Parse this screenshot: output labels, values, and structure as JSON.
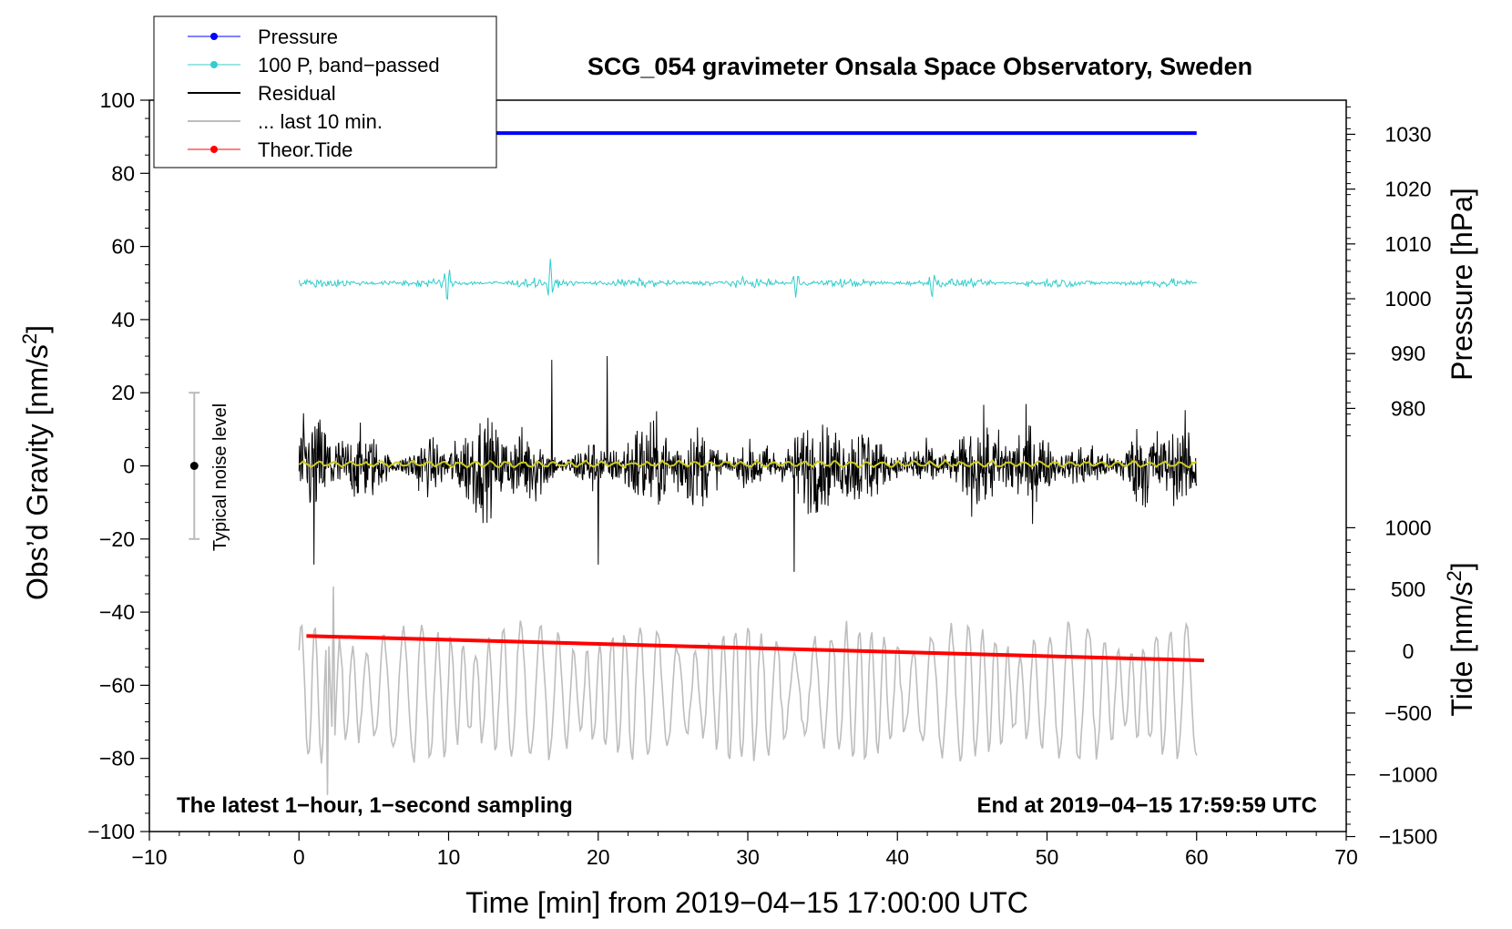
{
  "chart_data": {
    "type": "line",
    "title": "SCG_054 gravimeter Onsala Space Observatory, Sweden",
    "xlabel": "Time [min] from 2019−04−15 17:00:00 UTC",
    "ylabel_left_main": "Obs’d Gravity [nm/s",
    "ylabel_left_sup": "2",
    "ylabel_left_end": "]",
    "ylabel_right_top": "Pressure [hPa]",
    "ylabel_right_bottom_main": "Tide [nm/s",
    "ylabel_right_bottom_sup": "2",
    "ylabel_right_bottom_end": "]",
    "xlim": [
      -10,
      70
    ],
    "ylim": [
      -100,
      100
    ],
    "x_ticks": [
      -10,
      0,
      10,
      20,
      30,
      40,
      50,
      60,
      70
    ],
    "x_tick_labels": [
      "−10",
      "0",
      "10",
      "20",
      "30",
      "40",
      "50",
      "60",
      "70"
    ],
    "y_ticks": [
      100,
      80,
      60,
      40,
      20,
      0,
      -20,
      -40,
      -60,
      -80,
      -100
    ],
    "y_tick_labels": [
      "100",
      "80",
      "60",
      "40",
      "20",
      "0",
      "−20",
      "−40",
      "−60",
      "−80",
      "−100"
    ],
    "pressure_axis": {
      "ticks": [
        1030,
        1020,
        1010,
        1000,
        990,
        980
      ],
      "tick_labels": [
        "1030",
        "1020",
        "1010",
        "1000",
        "990",
        "980"
      ],
      "hpa_per_gravity_unit": 0.667,
      "gravity_at_1000": 45.7
    },
    "tide_axis": {
      "ticks": [
        1000,
        500,
        0,
        -500,
        -1000,
        -1500
      ],
      "tick_labels": [
        "1000",
        "500",
        "0",
        "−500",
        "−1000",
        "−1500"
      ],
      "tide_per_gravity_unit": 29.6,
      "gravity_at_0": -50.7
    },
    "legend": {
      "position": "top-left",
      "entries": [
        {
          "label": "Pressure",
          "color": "#0000ff",
          "marker": true
        },
        {
          "label": "100 P, band−passed",
          "color": "#33cccc",
          "marker": true
        },
        {
          "label": "Residual",
          "color": "#000000",
          "marker": false
        },
        {
          "label": "... last 10 min.",
          "color": "#bdbdbd",
          "marker": false
        },
        {
          "label": "Theor.Tide",
          "color": "#ff0000",
          "marker": true
        }
      ]
    },
    "series": [
      {
        "name": "Pressure",
        "color": "#0000ff",
        "x_range": [
          0,
          60
        ],
        "level": 91,
        "unit": "gravity-axis units"
      },
      {
        "name": "100 P, band−passed",
        "color": "#33cccc",
        "x_range": [
          0,
          60
        ],
        "baseline": 50,
        "noise_amplitude": 1.2,
        "spikes": [
          {
            "x": 9.9,
            "amp": -6
          },
          {
            "x": 16.8,
            "amp": 6
          },
          {
            "x": 33.2,
            "amp": -4
          },
          {
            "x": 42.3,
            "amp": -4
          }
        ]
      },
      {
        "name": "Residual",
        "color": "#000000",
        "x_range": [
          0,
          60
        ],
        "baseline": 0,
        "typical_amplitude": 12,
        "extremes": [
          {
            "x": 20.6,
            "y": 31
          },
          {
            "x": 16.9,
            "y": 29
          },
          {
            "x": 33.1,
            "y": -29
          },
          {
            "x": 20.0,
            "y": -27
          },
          {
            "x": 1.0,
            "y": -27
          }
        ]
      },
      {
        "name": "Residual smoothed",
        "color": "#cccc22",
        "x_range": [
          0,
          60
        ],
        "baseline": 0.5,
        "amplitude": 1
      },
      {
        "name": "... last 10 min.",
        "color": "#bdbdbd",
        "x_range": [
          0,
          60
        ],
        "baseline": -62,
        "amplitude": 18,
        "extremes": [
          {
            "x": 2.3,
            "y": -33
          },
          {
            "x": 1.9,
            "y": -90
          }
        ]
      },
      {
        "name": "Theor.Tide",
        "color": "#ff0000",
        "x": [
          0.5,
          60.5
        ],
        "y": [
          -46.5,
          -53.2
        ]
      }
    ],
    "noise_bar": {
      "label": "Typical noise level",
      "x": -7,
      "center": 0,
      "range": [
        -20,
        20
      ]
    },
    "annotations": {
      "left": "The latest 1−hour, 1−second sampling",
      "right": "End at 2019−04−15 17:59:59 UTC"
    }
  }
}
